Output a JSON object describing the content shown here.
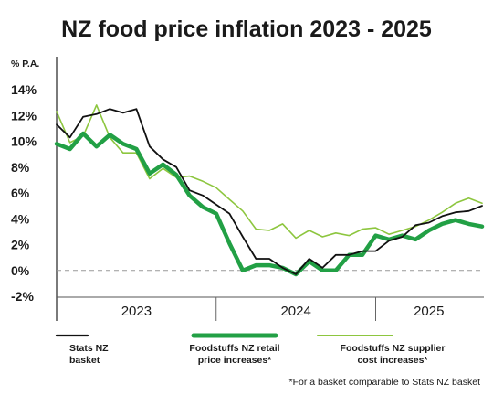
{
  "chart_data": {
    "type": "line",
    "title": "NZ food price inflation 2023 - 2025",
    "ylabel": "% P.A.",
    "xlabel": "",
    "ylim": [
      -2,
      14
    ],
    "yticks": [
      14,
      12,
      10,
      8,
      6,
      4,
      2,
      0,
      -2
    ],
    "ytick_labels": [
      "14%",
      "12%",
      "10%",
      "8%",
      "6%",
      "4%",
      "2%",
      "0%",
      "-2%"
    ],
    "x_axis_periods": [
      {
        "label": "2023",
        "start": 0,
        "end": 12
      },
      {
        "label": "2024",
        "start": 12,
        "end": 24
      },
      {
        "label": "2025",
        "start": 24,
        "end": 33
      }
    ],
    "x": [
      0,
      1,
      2,
      3,
      4,
      5,
      6,
      7,
      8,
      9,
      10,
      11,
      12,
      13,
      14,
      15,
      16,
      17,
      18,
      19,
      20,
      21,
      22,
      23,
      24,
      25,
      26,
      27,
      28,
      29,
      30,
      31,
      32
    ],
    "zero_line": "dashed",
    "grid": false,
    "series": [
      {
        "name": "Stats NZ basket",
        "color": "#111111",
        "values": [
          11.3,
          10.3,
          11.9,
          12.1,
          12.5,
          12.2,
          12.5,
          9.6,
          8.6,
          8.0,
          6.2,
          5.8,
          5.1,
          4.4,
          2.6,
          0.9,
          0.9,
          0.2,
          -0.3,
          0.9,
          0.2,
          1.2,
          1.2,
          1.5,
          1.5,
          2.3,
          2.6,
          3.5,
          3.7,
          4.2,
          4.5,
          4.6,
          5.0
        ]
      },
      {
        "name": "Foodstuffs NZ retail price increases*",
        "color": "#22a045",
        "values": [
          9.8,
          9.4,
          10.6,
          9.6,
          10.5,
          9.8,
          9.4,
          7.5,
          8.2,
          7.4,
          5.8,
          4.9,
          4.4,
          2.1,
          0.0,
          0.4,
          0.4,
          0.2,
          -0.3,
          0.7,
          0.0,
          0.0,
          1.2,
          1.2,
          2.7,
          2.4,
          2.7,
          2.4,
          3.1,
          3.6,
          3.9,
          3.6,
          3.4
        ]
      },
      {
        "name": "Foodstuffs NZ supplier cost increases*",
        "color": "#8dc63f",
        "values": [
          12.3,
          9.9,
          10.4,
          12.8,
          10.3,
          9.1,
          9.1,
          7.1,
          7.9,
          7.2,
          7.3,
          6.9,
          6.4,
          5.5,
          4.6,
          3.2,
          3.1,
          3.6,
          2.5,
          3.1,
          2.6,
          2.9,
          2.7,
          3.2,
          3.3,
          2.8,
          3.1,
          3.4,
          3.9,
          4.5,
          5.2,
          5.6,
          5.2
        ]
      }
    ],
    "legend": {
      "placement": "bottom",
      "items": [
        {
          "line1": "Stats NZ",
          "line2": "basket"
        },
        {
          "line1": "Foodstuffs NZ retail",
          "line2": "price increases*"
        },
        {
          "line1": "Foodstuffs NZ supplier",
          "line2": "cost increases*"
        }
      ]
    },
    "footnote": "*For a basket comparable to Stats NZ basket"
  }
}
